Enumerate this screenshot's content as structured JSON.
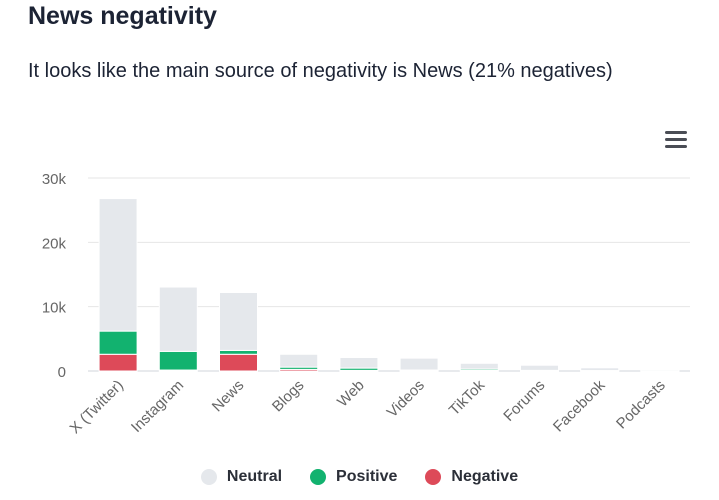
{
  "header": {
    "title": "News negativity",
    "subtitle": "It looks like the main source of negativity is News (21% negatives)"
  },
  "menu": {
    "icon": "hamburger-menu-icon"
  },
  "colors": {
    "neutral": "#e5e8ec",
    "positive": "#12b26f",
    "negative": "#dd4a59",
    "grid": "#e6e6e6",
    "axis_text": "#666666"
  },
  "chart_data": {
    "type": "bar",
    "stacked": true,
    "title": "News negativity",
    "categories": [
      "X (Twitter)",
      "Instagram",
      "News",
      "Blogs",
      "Web",
      "Videos",
      "TikTok",
      "Forums",
      "Facebook",
      "Podcasts"
    ],
    "series": [
      {
        "name": "Negative",
        "color": "#dd4a59",
        "values": [
          2600,
          150,
          2600,
          250,
          100,
          50,
          100,
          50,
          30,
          10
        ]
      },
      {
        "name": "Positive",
        "color": "#12b26f",
        "values": [
          3600,
          2900,
          600,
          350,
          350,
          100,
          200,
          50,
          40,
          10
        ]
      },
      {
        "name": "Neutral",
        "color": "#e5e8ec",
        "values": [
          20600,
          10000,
          9000,
          2000,
          1650,
          1850,
          900,
          800,
          430,
          180
        ]
      }
    ],
    "ylim": [
      0,
      30000
    ],
    "yticks": [
      0,
      10000,
      20000,
      30000
    ],
    "ytick_labels": [
      "0",
      "10k",
      "20k",
      "30k"
    ],
    "xlabel": "",
    "ylabel": "",
    "grid": true,
    "legend": {
      "position": "bottom",
      "items": [
        "Neutral",
        "Positive",
        "Negative"
      ]
    }
  }
}
